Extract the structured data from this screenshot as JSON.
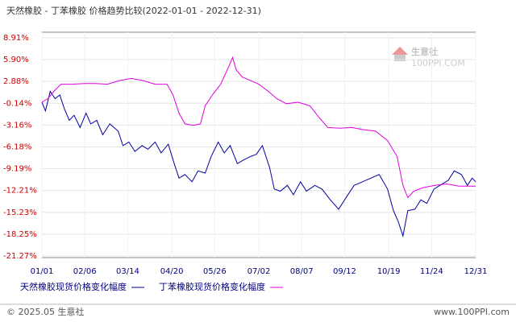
{
  "chart_data": {
    "type": "line",
    "title": "天然橡胶 - 丁苯橡胶 价格趋势比较(2022-01-01 - 2022-12-31)",
    "xlim": [
      0,
      364
    ],
    "xticks": [
      {
        "value": 0,
        "label": "01/01"
      },
      {
        "value": 36,
        "label": "02/06"
      },
      {
        "value": 72,
        "label": "03/14"
      },
      {
        "value": 109,
        "label": "04/20"
      },
      {
        "value": 145,
        "label": "05/26"
      },
      {
        "value": 182,
        "label": "07/02"
      },
      {
        "value": 218,
        "label": "08/07"
      },
      {
        "value": 254,
        "label": "09/12"
      },
      {
        "value": 291,
        "label": "10/19"
      },
      {
        "value": 327,
        "label": "11/24"
      },
      {
        "value": 364,
        "label": "12/31"
      }
    ],
    "ylim": [
      -21.27,
      8.91
    ],
    "yticks": [
      {
        "value": 8.91,
        "label": "8.91%"
      },
      {
        "value": 5.9,
        "label": "5.90%"
      },
      {
        "value": 2.88,
        "label": "2.88%"
      },
      {
        "value": -0.14,
        "label": "-0.14%"
      },
      {
        "value": -3.16,
        "label": "-3.16%"
      },
      {
        "value": -6.18,
        "label": "-6.18%"
      },
      {
        "value": -9.19,
        "label": "-9.19%"
      },
      {
        "value": -12.21,
        "label": "-12.21%"
      },
      {
        "value": -15.23,
        "label": "-15.23%"
      },
      {
        "value": -18.25,
        "label": "-18.25%"
      },
      {
        "value": -21.27,
        "label": "-21.27%"
      }
    ],
    "grid": true,
    "series": [
      {
        "name": "天然橡胶现货价格变化幅度",
        "color": "#0000a0",
        "x": [
          0,
          3,
          7,
          11,
          15,
          19,
          23,
          27,
          32,
          37,
          41,
          46,
          51,
          57,
          64,
          68,
          73,
          78,
          84,
          89,
          95,
          100,
          106,
          111,
          115,
          120,
          126,
          131,
          137,
          142,
          148,
          153,
          158,
          164,
          169,
          175,
          180,
          185,
          191,
          195,
          200,
          206,
          211,
          217,
          222,
          229,
          235,
          242,
          249,
          256,
          262,
          269,
          276,
          283,
          290,
          295,
          299,
          303,
          307,
          313,
          318,
          323,
          329,
          334,
          341,
          346,
          352,
          357,
          361,
          364
        ],
        "values": [
          0,
          -1.2,
          1.5,
          0.5,
          1.0,
          -1.0,
          -2.5,
          -1.8,
          -3.5,
          -1.5,
          -3.0,
          -2.5,
          -4.5,
          -3.0,
          -4.0,
          -6.0,
          -5.5,
          -6.8,
          -6.0,
          -6.5,
          -5.5,
          -7.0,
          -5.8,
          -8.5,
          -10.5,
          -10.0,
          -11.0,
          -9.5,
          -9.8,
          -7.5,
          -5.5,
          -7.0,
          -6.0,
          -8.5,
          -8.0,
          -7.5,
          -7.2,
          -6.0,
          -9.0,
          -12.0,
          -12.3,
          -11.5,
          -12.8,
          -11.0,
          -12.3,
          -11.5,
          -12.0,
          -13.5,
          -14.8,
          -13.0,
          -11.5,
          -11.0,
          -10.5,
          -10.0,
          -12.0,
          -15.0,
          -16.5,
          -18.5,
          -15.0,
          -14.8,
          -13.5,
          -14.0,
          -12.0,
          -11.5,
          -10.8,
          -9.5,
          -10.0,
          -11.5,
          -10.5,
          -11.0
        ]
      },
      {
        "name": "丁苯橡胶现货价格变化幅度",
        "color": "#e000e0",
        "x": [
          0,
          5,
          10,
          16,
          25,
          35,
          45,
          55,
          65,
          75,
          85,
          95,
          105,
          110,
          115,
          120,
          127,
          133,
          137,
          143,
          150,
          157,
          160,
          163,
          168,
          175,
          182,
          190,
          197,
          205,
          215,
          225,
          232,
          240,
          250,
          260,
          270,
          280,
          290,
          298,
          303,
          307,
          312,
          320,
          330,
          340,
          350,
          364
        ],
        "values": [
          0,
          0.5,
          1.5,
          2.5,
          2.5,
          2.6,
          2.6,
          2.5,
          3.0,
          3.3,
          3.0,
          2.5,
          2.5,
          1.0,
          -1.5,
          -3.0,
          -3.2,
          -3.0,
          -0.5,
          1.0,
          2.5,
          5.0,
          6.2,
          4.5,
          3.5,
          3.0,
          2.5,
          1.5,
          0.5,
          -0.2,
          0.0,
          -0.5,
          -2.0,
          -3.5,
          -3.6,
          -3.5,
          -3.8,
          -4.0,
          -5.3,
          -7.5,
          -11.5,
          -13.2,
          -12.3,
          -11.8,
          -11.5,
          -11.3,
          -11.6,
          -11.6
        ]
      }
    ],
    "watermark_name": "生意社",
    "watermark_site": "100PPI.COM",
    "footer_left": "© 2025.05 生意社",
    "footer_right": "www.100PPI.com"
  }
}
